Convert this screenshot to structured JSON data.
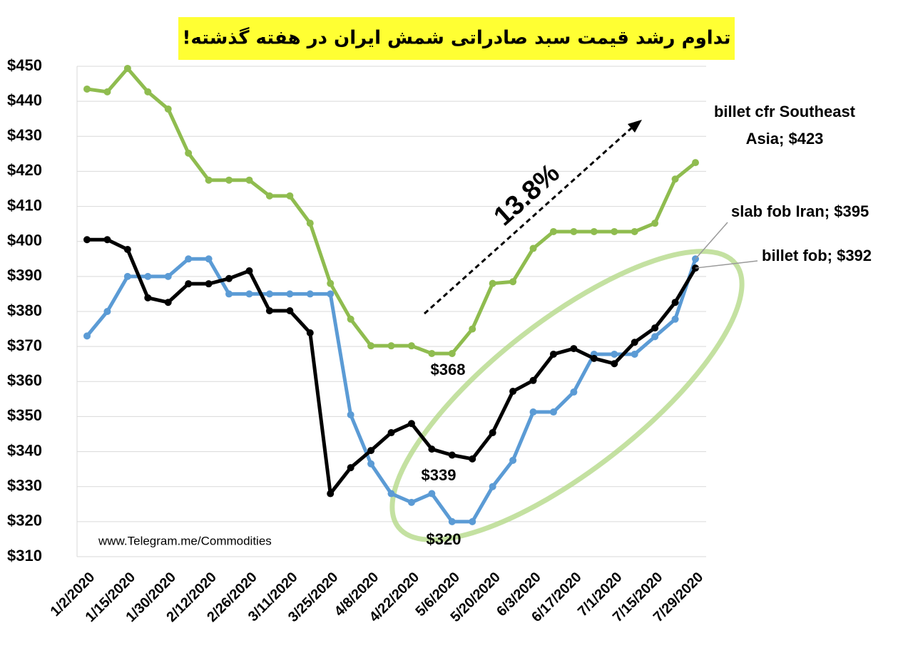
{
  "chart_data": {
    "type": "line",
    "title": "تداوم رشد قیمت سبد صادراتی شمش ایران در هفته گذشته!",
    "categories": [
      "1/2/2020",
      null,
      "1/15/2020",
      null,
      "1/30/2020",
      null,
      "2/12/2020",
      null,
      "2/26/2020",
      null,
      "3/11/2020",
      null,
      "3/25/2020",
      null,
      "4/8/2020",
      null,
      "4/22/2020",
      null,
      "5/6/2020",
      null,
      "5/20/2020",
      null,
      "6/3/2020",
      null,
      "6/17/2020",
      null,
      "7/1/2020",
      null,
      "7/15/2020",
      null,
      "7/29/2020"
    ],
    "series": [
      {
        "name": "billet cfr Southeast Asia; $423",
        "color": "#8fbc4f",
        "values": [
          443.5,
          442.7,
          449.4,
          442.7,
          437.8,
          425.2,
          417.5,
          417.5,
          417.5,
          413,
          413,
          405.2,
          388,
          377.8,
          370.2,
          370.2,
          370.2,
          368,
          368,
          375,
          388,
          388.5,
          398,
          402.8,
          402.8,
          402.8,
          402.8,
          402.8,
          405.2,
          417.8,
          422.5
        ]
      },
      {
        "name": "slab fob Iran; $395",
        "color": "#5b9bd5",
        "values": [
          373,
          380,
          390,
          390,
          390,
          395,
          395,
          385,
          385,
          385,
          385,
          385,
          385,
          350.5,
          336.5,
          328,
          325.5,
          328,
          320,
          320,
          330,
          337.5,
          351.3,
          351.3,
          357,
          367.8,
          367.8,
          367.8,
          372.8,
          377.8,
          395
        ]
      },
      {
        "name": "billet fob; $392",
        "color": "#000000",
        "values": [
          400.5,
          400.5,
          397.7,
          383.9,
          382.6,
          387.9,
          387.9,
          389.4,
          391.6,
          380.2,
          380.2,
          373.9,
          328,
          335.4,
          340.3,
          345.4,
          348,
          340.7,
          339,
          337.9,
          345.4,
          357.2,
          360.3,
          367.8,
          369.4,
          366.6,
          365.1,
          371.2,
          375.3,
          382.6,
          392.4
        ]
      }
    ],
    "ylim": [
      310,
      450
    ],
    "yticks": [
      {
        "value": 310,
        "label": "$310"
      },
      {
        "value": 320,
        "label": "$320"
      },
      {
        "value": 330,
        "label": "$330"
      },
      {
        "value": 340,
        "label": "$340"
      },
      {
        "value": 350,
        "label": "$350"
      },
      {
        "value": 360,
        "label": "$360"
      },
      {
        "value": 370,
        "label": "$370"
      },
      {
        "value": 380,
        "label": "$380"
      },
      {
        "value": 390,
        "label": "$390"
      },
      {
        "value": 400,
        "label": "$400"
      },
      {
        "value": 410,
        "label": "$410"
      },
      {
        "value": 420,
        "label": "$420"
      },
      {
        "value": 430,
        "label": "$430"
      },
      {
        "value": 440,
        "label": "$440"
      },
      {
        "value": 450,
        "label": "$450"
      }
    ],
    "grid": true,
    "annotations": [
      "13.8%",
      "$368",
      "$339",
      "$320",
      "www.Telegram.me/Commodities"
    ]
  }
}
